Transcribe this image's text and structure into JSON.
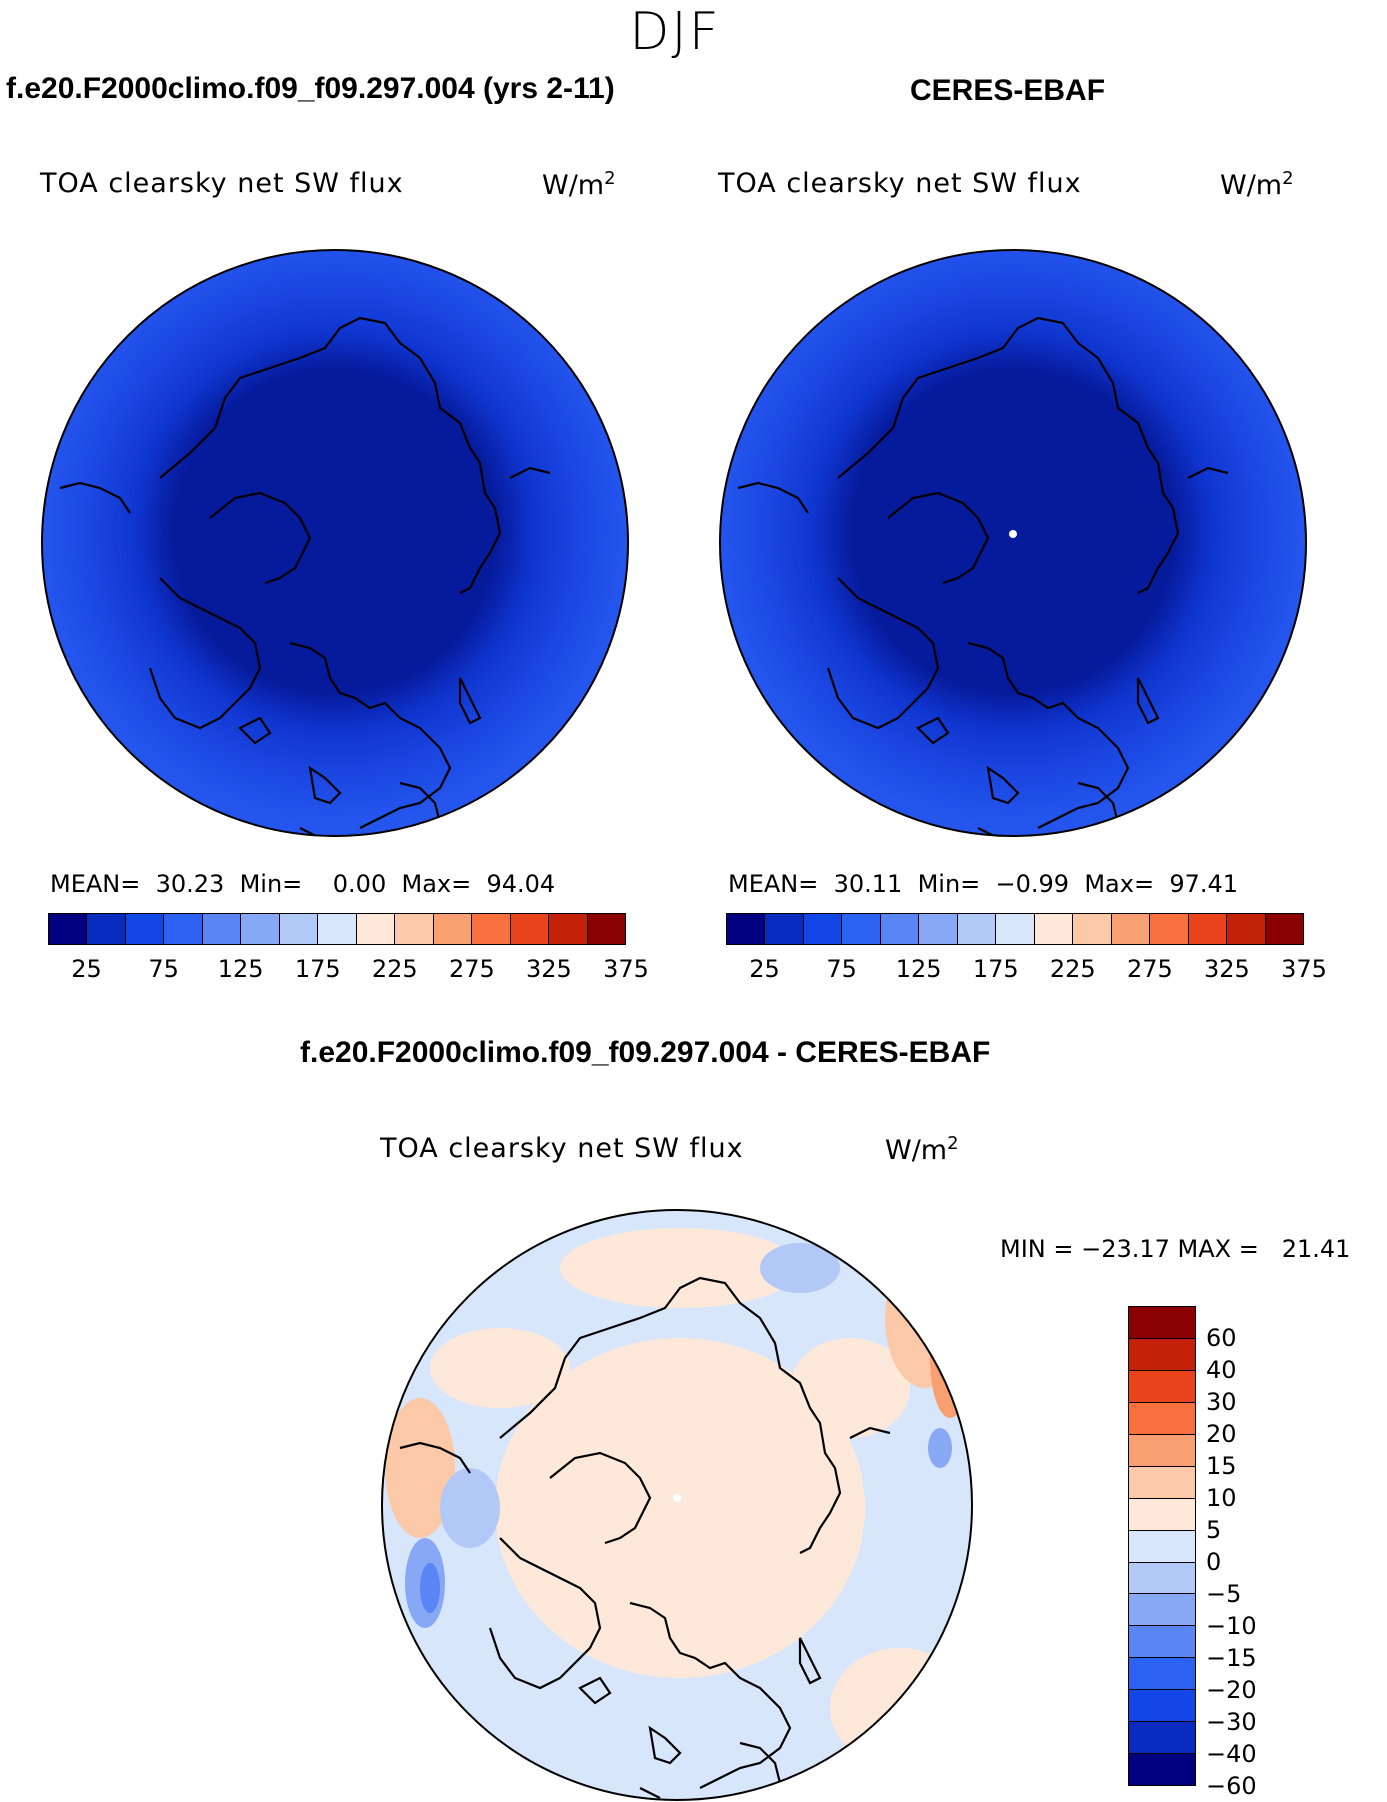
{
  "season": "DJF",
  "panels": {
    "model": {
      "case_title": "f.e20.F2000climo.f09_f09.297.004 (yrs 2-11)",
      "field_label": "TOA clearsky net SW flux",
      "units": "W/m",
      "units_sup": "2",
      "stats": "MEAN=  30.23  Min=    0.00  Max=  94.04",
      "colorbar_ticks": [
        "25",
        "75",
        "125",
        "175",
        "225",
        "275",
        "325",
        "375"
      ]
    },
    "obs": {
      "case_title": "CERES-EBAF",
      "field_label": "TOA clearsky net SW flux",
      "units": "W/m",
      "units_sup": "2",
      "stats": "MEAN=  30.11  Min=  −0.99  Max=  97.41",
      "colorbar_ticks": [
        "25",
        "75",
        "125",
        "175",
        "225",
        "275",
        "325",
        "375"
      ]
    },
    "diff": {
      "case_title": "f.e20.F2000climo.f09_f09.297.004 - CERES-EBAF",
      "field_label": "TOA clearsky net SW flux",
      "units": "W/m",
      "units_sup": "2",
      "stats": "MIN = −23.17 MAX =   21.41",
      "colorbar_ticks": [
        "60",
        "40",
        "30",
        "20",
        "15",
        "10",
        "5",
        "0",
        "−5",
        "−10",
        "−15",
        "−20",
        "−30",
        "−40",
        "−60"
      ]
    }
  },
  "colors": {
    "abs_scale": [
      "#000080",
      "#0a2bbf",
      "#1246e6",
      "#2c62f2",
      "#5a86f5",
      "#86a8f5",
      "#b2c9f7",
      "#d8e6fb",
      "#fde8d9",
      "#fbc8a8",
      "#f9a073",
      "#f7703e",
      "#e8431a",
      "#c42208",
      "#8b0000"
    ],
    "diff_scale": [
      "#8b0000",
      "#c42208",
      "#e8431a",
      "#f7703e",
      "#f9a073",
      "#fbc8a8",
      "#fde8d9",
      "#d8e6fb",
      "#b2c9f7",
      "#86a8f5",
      "#5a86f5",
      "#2c62f2",
      "#1246e6",
      "#0a2bbf",
      "#000080"
    ],
    "abs_outer": "#1f4fe8",
    "abs_mid": "#0f35cf",
    "abs_inner": "#061a9c",
    "diff_warm": "#fde8d9",
    "diff_cool": "#d8e6fb"
  }
}
